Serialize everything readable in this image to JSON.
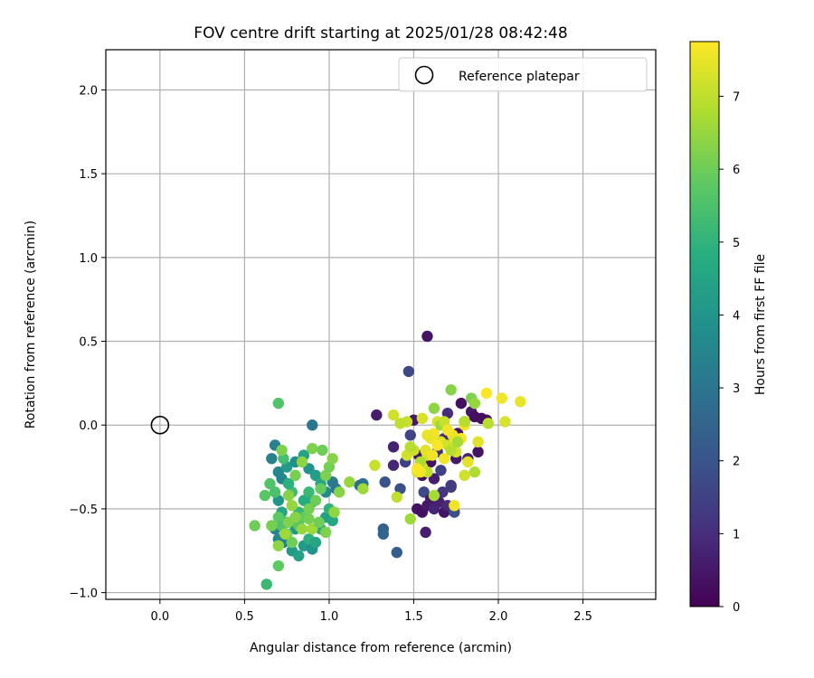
{
  "chart_data": {
    "type": "scatter",
    "title": "FOV centre drift starting at 2025/01/28 08:42:48",
    "xlabel": "Angular distance from reference (arcmin)",
    "ylabel": "Rotation from reference (arcmin)",
    "xlim": [
      -0.32,
      2.93
    ],
    "ylim": [
      -1.04,
      2.24
    ],
    "xticks": [
      0.0,
      0.5,
      1.0,
      1.5,
      2.0,
      2.5
    ],
    "xtick_labels": [
      "0.0",
      "0.5",
      "1.0",
      "1.5",
      "2.0",
      "2.5"
    ],
    "yticks": [
      -1.0,
      -0.5,
      0.0,
      0.5,
      1.0,
      1.5,
      2.0
    ],
    "ytick_labels": [
      "−1.0",
      "−0.5",
      "0.0",
      "0.5",
      "1.0",
      "1.5",
      "2.0"
    ],
    "grid": true,
    "legend": {
      "position": "top-right",
      "entries": [
        "Reference platepar"
      ]
    },
    "reference_point": {
      "x": 0.0,
      "y": 0.0
    },
    "colorbar": {
      "label": "Hours from first FF file",
      "range": [
        0,
        7.75
      ],
      "ticks": [
        0,
        1,
        2,
        3,
        4,
        5,
        6,
        7
      ],
      "tick_labels": [
        "0",
        "1",
        "2",
        "3",
        "4",
        "5",
        "6",
        "7"
      ],
      "colormap": "viridis"
    },
    "points": [
      {
        "x": 1.58,
        "y": 0.53,
        "h": 0.4
      },
      {
        "x": 1.47,
        "y": 0.32,
        "h": 1.7
      },
      {
        "x": 1.28,
        "y": 0.06,
        "h": 0.6
      },
      {
        "x": 1.38,
        "y": -0.13,
        "h": 0.7
      },
      {
        "x": 1.38,
        "y": -0.24,
        "h": 0.8
      },
      {
        "x": 1.42,
        "y": -0.38,
        "h": 1.9
      },
      {
        "x": 1.45,
        "y": -0.22,
        "h": 1.5
      },
      {
        "x": 1.48,
        "y": -0.06,
        "h": 1.6
      },
      {
        "x": 1.5,
        "y": 0.03,
        "h": 0.5
      },
      {
        "x": 1.53,
        "y": -0.18,
        "h": 0.4
      },
      {
        "x": 1.55,
        "y": -0.3,
        "h": 0.3
      },
      {
        "x": 1.52,
        "y": -0.5,
        "h": 0.4
      },
      {
        "x": 1.55,
        "y": -0.52,
        "h": 0.3
      },
      {
        "x": 1.57,
        "y": -0.64,
        "h": 0.6
      },
      {
        "x": 1.58,
        "y": -0.48,
        "h": 0.5
      },
      {
        "x": 1.56,
        "y": -0.4,
        "h": 1.7
      },
      {
        "x": 1.6,
        "y": -0.44,
        "h": 0.5
      },
      {
        "x": 1.62,
        "y": -0.5,
        "h": 0.8
      },
      {
        "x": 1.65,
        "y": -0.46,
        "h": 0.7
      },
      {
        "x": 1.68,
        "y": -0.52,
        "h": 0.4
      },
      {
        "x": 1.7,
        "y": -0.48,
        "h": 0.9
      },
      {
        "x": 1.67,
        "y": -0.4,
        "h": 1.2
      },
      {
        "x": 1.72,
        "y": -0.37,
        "h": 1.4
      },
      {
        "x": 1.74,
        "y": -0.52,
        "h": 1.9
      },
      {
        "x": 1.62,
        "y": -0.32,
        "h": 0.6
      },
      {
        "x": 1.66,
        "y": -0.27,
        "h": 1.5
      },
      {
        "x": 1.6,
        "y": -0.22,
        "h": 0.4
      },
      {
        "x": 1.64,
        "y": -0.16,
        "h": 1.1
      },
      {
        "x": 1.68,
        "y": -0.08,
        "h": 0.9
      },
      {
        "x": 1.7,
        "y": 0.07,
        "h": 1.0
      },
      {
        "x": 1.76,
        "y": -0.05,
        "h": 0.4
      },
      {
        "x": 1.78,
        "y": 0.13,
        "h": 0.3
      },
      {
        "x": 1.8,
        "y": 0.02,
        "h": 0.6
      },
      {
        "x": 1.84,
        "y": 0.08,
        "h": 0.5
      },
      {
        "x": 1.86,
        "y": 0.05,
        "h": 0.3
      },
      {
        "x": 1.88,
        "y": -0.16,
        "h": 0.4
      },
      {
        "x": 1.9,
        "y": 0.04,
        "h": 0.3
      },
      {
        "x": 1.93,
        "y": 0.03,
        "h": 0.2
      },
      {
        "x": 1.82,
        "y": -0.2,
        "h": 0.7
      },
      {
        "x": 1.75,
        "y": -0.2,
        "h": 0.5
      },
      {
        "x": 1.72,
        "y": -0.36,
        "h": 1.3
      },
      {
        "x": 1.4,
        "y": -0.76,
        "h": 2.3
      },
      {
        "x": 1.32,
        "y": -0.62,
        "h": 2.4
      },
      {
        "x": 1.32,
        "y": -0.65,
        "h": 2.5
      },
      {
        "x": 1.33,
        "y": -0.34,
        "h": 2.0
      },
      {
        "x": 1.2,
        "y": -0.35,
        "h": 3.0
      },
      {
        "x": 1.18,
        "y": -0.36,
        "h": 2.8
      },
      {
        "x": 1.02,
        "y": -0.34,
        "h": 3.2
      },
      {
        "x": 1.04,
        "y": -0.38,
        "h": 3.1
      },
      {
        "x": 0.9,
        "y": 0.0,
        "h": 3.1
      },
      {
        "x": 0.68,
        "y": -0.12,
        "h": 3.3
      },
      {
        "x": 0.66,
        "y": -0.2,
        "h": 3.4
      },
      {
        "x": 0.7,
        "y": -0.28,
        "h": 3.6
      },
      {
        "x": 0.72,
        "y": -0.32,
        "h": 3.5
      },
      {
        "x": 0.75,
        "y": -0.25,
        "h": 4.2
      },
      {
        "x": 0.8,
        "y": -0.22,
        "h": 3.8
      },
      {
        "x": 0.85,
        "y": -0.18,
        "h": 4.4
      },
      {
        "x": 0.88,
        "y": -0.26,
        "h": 3.9
      },
      {
        "x": 0.92,
        "y": -0.3,
        "h": 4.3
      },
      {
        "x": 0.95,
        "y": -0.35,
        "h": 4.6
      },
      {
        "x": 0.98,
        "y": -0.4,
        "h": 3.7
      },
      {
        "x": 0.7,
        "y": -0.45,
        "h": 4.0
      },
      {
        "x": 0.72,
        "y": -0.52,
        "h": 4.5
      },
      {
        "x": 0.75,
        "y": -0.58,
        "h": 4.8
      },
      {
        "x": 0.68,
        "y": -0.62,
        "h": 3.4
      },
      {
        "x": 0.7,
        "y": -0.68,
        "h": 3.6
      },
      {
        "x": 0.73,
        "y": -0.7,
        "h": 3.3
      },
      {
        "x": 0.78,
        "y": -0.75,
        "h": 4.1
      },
      {
        "x": 0.82,
        "y": -0.78,
        "h": 4.4
      },
      {
        "x": 0.85,
        "y": -0.72,
        "h": 4.2
      },
      {
        "x": 0.88,
        "y": -0.68,
        "h": 4.9
      },
      {
        "x": 0.9,
        "y": -0.74,
        "h": 3.9
      },
      {
        "x": 0.92,
        "y": -0.7,
        "h": 4.5
      },
      {
        "x": 0.95,
        "y": -0.62,
        "h": 4.7
      },
      {
        "x": 0.98,
        "y": -0.55,
        "h": 4.3
      },
      {
        "x": 1.0,
        "y": -0.5,
        "h": 5.0
      },
      {
        "x": 1.02,
        "y": -0.57,
        "h": 4.6
      },
      {
        "x": 0.8,
        "y": -0.62,
        "h": 4.0
      },
      {
        "x": 0.82,
        "y": -0.52,
        "h": 5.1
      },
      {
        "x": 0.85,
        "y": -0.45,
        "h": 4.8
      },
      {
        "x": 0.88,
        "y": -0.4,
        "h": 5.2
      },
      {
        "x": 0.9,
        "y": -0.46,
        "h": 4.7
      },
      {
        "x": 0.78,
        "y": -0.4,
        "h": 5.3
      },
      {
        "x": 0.76,
        "y": -0.35,
        "h": 4.9
      },
      {
        "x": 0.73,
        "y": -0.2,
        "h": 5.4
      },
      {
        "x": 0.65,
        "y": -0.35,
        "h": 5.6
      },
      {
        "x": 0.62,
        "y": -0.42,
        "h": 5.7
      },
      {
        "x": 0.68,
        "y": -0.4,
        "h": 5.5
      },
      {
        "x": 0.7,
        "y": -0.55,
        "h": 5.8
      },
      {
        "x": 0.72,
        "y": -0.6,
        "h": 5.6
      },
      {
        "x": 0.75,
        "y": -0.65,
        "h": 5.9
      },
      {
        "x": 0.78,
        "y": -0.7,
        "h": 6.0
      },
      {
        "x": 0.82,
        "y": -0.6,
        "h": 5.7
      },
      {
        "x": 0.85,
        "y": -0.55,
        "h": 5.8
      },
      {
        "x": 0.88,
        "y": -0.5,
        "h": 6.1
      },
      {
        "x": 0.92,
        "y": -0.45,
        "h": 6.0
      },
      {
        "x": 0.95,
        "y": -0.38,
        "h": 5.9
      },
      {
        "x": 0.98,
        "y": -0.3,
        "h": 6.2
      },
      {
        "x": 1.0,
        "y": -0.25,
        "h": 6.1
      },
      {
        "x": 1.02,
        "y": -0.2,
        "h": 6.3
      },
      {
        "x": 0.96,
        "y": -0.15,
        "h": 6.0
      },
      {
        "x": 0.9,
        "y": -0.14,
        "h": 6.2
      },
      {
        "x": 0.84,
        "y": -0.22,
        "h": 6.4
      },
      {
        "x": 0.8,
        "y": -0.3,
        "h": 6.1
      },
      {
        "x": 0.76,
        "y": -0.42,
        "h": 6.3
      },
      {
        "x": 0.72,
        "y": -0.15,
        "h": 6.2
      },
      {
        "x": 0.7,
        "y": 0.13,
        "h": 5.6
      },
      {
        "x": 0.63,
        "y": -0.95,
        "h": 5.2
      },
      {
        "x": 0.7,
        "y": -0.84,
        "h": 5.8
      },
      {
        "x": 0.56,
        "y": -0.6,
        "h": 6.0
      },
      {
        "x": 0.66,
        "y": -0.6,
        "h": 6.1
      },
      {
        "x": 0.7,
        "y": -0.72,
        "h": 6.4
      },
      {
        "x": 0.76,
        "y": -0.58,
        "h": 6.2
      },
      {
        "x": 0.8,
        "y": -0.55,
        "h": 6.3
      },
      {
        "x": 0.84,
        "y": -0.62,
        "h": 6.5
      },
      {
        "x": 0.88,
        "y": -0.56,
        "h": 6.1
      },
      {
        "x": 0.9,
        "y": -0.62,
        "h": 6.6
      },
      {
        "x": 0.94,
        "y": -0.58,
        "h": 6.0
      },
      {
        "x": 0.98,
        "y": -0.64,
        "h": 6.2
      },
      {
        "x": 1.03,
        "y": -0.52,
        "h": 6.4
      },
      {
        "x": 1.06,
        "y": -0.4,
        "h": 6.3
      },
      {
        "x": 1.12,
        "y": -0.34,
        "h": 6.5
      },
      {
        "x": 1.2,
        "y": -0.38,
        "h": 6.6
      },
      {
        "x": 0.78,
        "y": -0.48,
        "h": 6.5
      },
      {
        "x": 0.74,
        "y": -0.65,
        "h": 6.6
      },
      {
        "x": 1.27,
        "y": -0.24,
        "h": 7.1
      },
      {
        "x": 1.4,
        "y": -0.43,
        "h": 7.0
      },
      {
        "x": 1.48,
        "y": -0.56,
        "h": 6.6
      },
      {
        "x": 1.38,
        "y": 0.06,
        "h": 7.2
      },
      {
        "x": 1.46,
        "y": 0.02,
        "h": 7.1
      },
      {
        "x": 1.52,
        "y": -0.28,
        "h": 7.3
      },
      {
        "x": 1.55,
        "y": -0.25,
        "h": 7.4
      },
      {
        "x": 1.58,
        "y": -0.18,
        "h": 7.2
      },
      {
        "x": 1.6,
        "y": -0.08,
        "h": 7.5
      },
      {
        "x": 1.62,
        "y": -0.05,
        "h": 7.6
      },
      {
        "x": 1.64,
        "y": 0.02,
        "h": 7.3
      },
      {
        "x": 1.66,
        "y": -0.1,
        "h": 7.4
      },
      {
        "x": 1.68,
        "y": -0.2,
        "h": 7.6
      },
      {
        "x": 1.7,
        "y": -0.12,
        "h": 7.2
      },
      {
        "x": 1.73,
        "y": -0.06,
        "h": 7.5
      },
      {
        "x": 1.75,
        "y": -0.16,
        "h": 7.3
      },
      {
        "x": 1.78,
        "y": -0.08,
        "h": 7.7
      },
      {
        "x": 1.8,
        "y": 0.0,
        "h": 7.6
      },
      {
        "x": 1.82,
        "y": -0.22,
        "h": 7.4
      },
      {
        "x": 1.86,
        "y": -0.28,
        "h": 6.8
      },
      {
        "x": 1.8,
        "y": -0.3,
        "h": 7.2
      },
      {
        "x": 1.74,
        "y": -0.48,
        "h": 7.6
      },
      {
        "x": 1.62,
        "y": -0.42,
        "h": 6.7
      },
      {
        "x": 1.58,
        "y": -0.28,
        "h": 7.0
      },
      {
        "x": 1.54,
        "y": -0.22,
        "h": 6.8
      },
      {
        "x": 1.5,
        "y": -0.15,
        "h": 7.1
      },
      {
        "x": 1.55,
        "y": 0.04,
        "h": 7.3
      },
      {
        "x": 1.62,
        "y": 0.1,
        "h": 6.4
      },
      {
        "x": 1.66,
        "y": 0.0,
        "h": 6.6
      },
      {
        "x": 1.72,
        "y": 0.21,
        "h": 6.3
      },
      {
        "x": 1.84,
        "y": 0.16,
        "h": 6.2
      },
      {
        "x": 1.86,
        "y": 0.13,
        "h": 6.5
      },
      {
        "x": 1.8,
        "y": 0.02,
        "h": 6.9
      },
      {
        "x": 1.76,
        "y": -0.1,
        "h": 6.7
      },
      {
        "x": 1.72,
        "y": -0.15,
        "h": 6.9
      },
      {
        "x": 1.88,
        "y": -0.1,
        "h": 7.4
      },
      {
        "x": 1.93,
        "y": 0.19,
        "h": 7.7
      },
      {
        "x": 2.02,
        "y": 0.16,
        "h": 7.6
      },
      {
        "x": 2.13,
        "y": 0.14,
        "h": 7.5
      },
      {
        "x": 2.04,
        "y": 0.02,
        "h": 7.3
      },
      {
        "x": 1.94,
        "y": 0.01,
        "h": 6.9
      },
      {
        "x": 1.68,
        "y": 0.02,
        "h": 7.1
      },
      {
        "x": 1.7,
        "y": -0.03,
        "h": 7.6
      },
      {
        "x": 1.64,
        "y": -0.12,
        "h": 7.7
      },
      {
        "x": 1.58,
        "y": -0.06,
        "h": 7.5
      },
      {
        "x": 1.54,
        "y": -0.28,
        "h": 7.6
      },
      {
        "x": 1.46,
        "y": -0.18,
        "h": 7.2
      },
      {
        "x": 1.48,
        "y": -0.13,
        "h": 6.9
      },
      {
        "x": 1.42,
        "y": 0.01,
        "h": 7.0
      },
      {
        "x": 1.52,
        "y": -0.26,
        "h": 7.7
      },
      {
        "x": 1.57,
        "y": -0.15,
        "h": 7.4
      },
      {
        "x": 1.61,
        "y": -0.18,
        "h": 7.6
      }
    ]
  }
}
